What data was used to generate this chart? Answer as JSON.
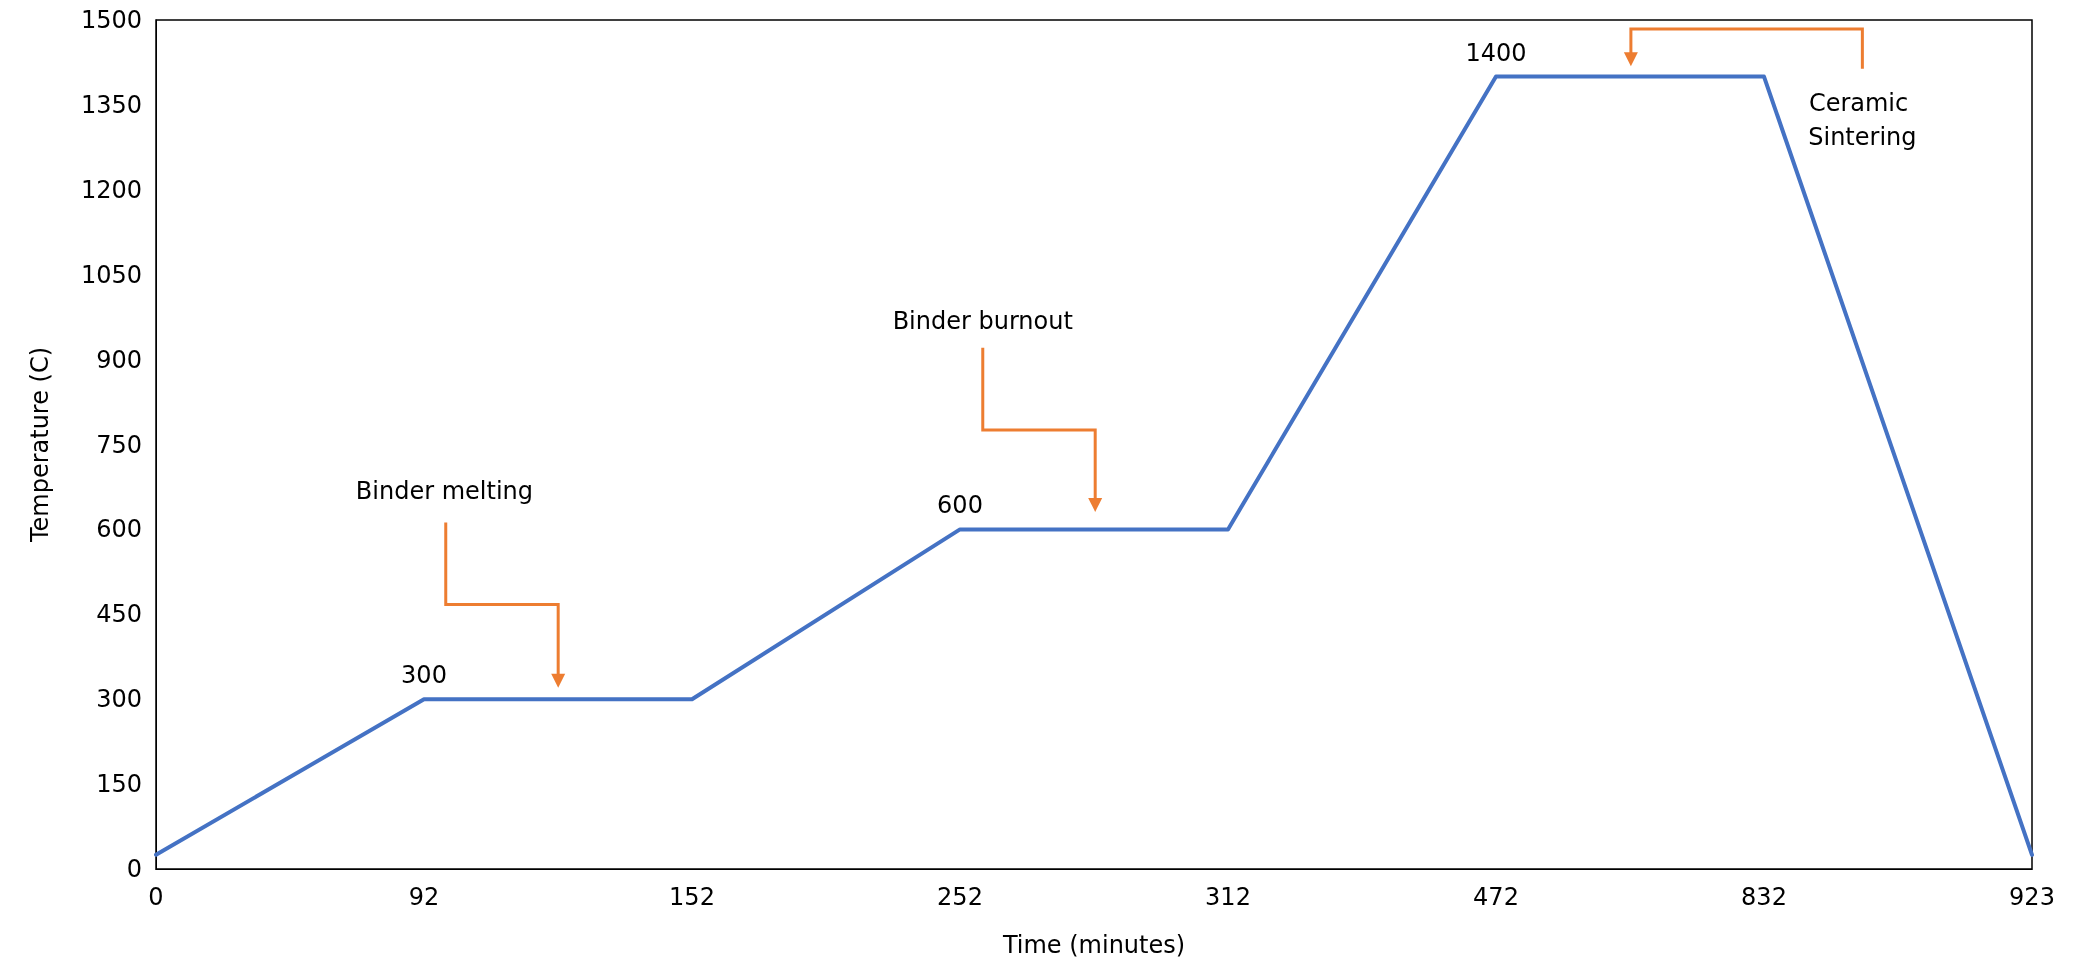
{
  "chart_data": {
    "type": "line",
    "xlabel": "Time (minutes)",
    "ylabel": "Temperature (C)",
    "categories": [
      "0",
      "92",
      "152",
      "252",
      "312",
      "472",
      "832",
      "923"
    ],
    "values": [
      25,
      300,
      300,
      600,
      600,
      1400,
      1400,
      25
    ],
    "value_labels": [
      null,
      "300",
      null,
      "600",
      null,
      "1400",
      null,
      null
    ],
    "color": "#4472c4",
    "marker": "none",
    "line_style": "solid",
    "ylim": [
      0,
      1500
    ],
    "yticks": [
      0,
      150,
      300,
      450,
      600,
      750,
      900,
      1050,
      1200,
      1350,
      1500
    ],
    "annotations": [
      "Binder melting",
      "Binder burnout",
      "Ceramic Sintering"
    ]
  }
}
